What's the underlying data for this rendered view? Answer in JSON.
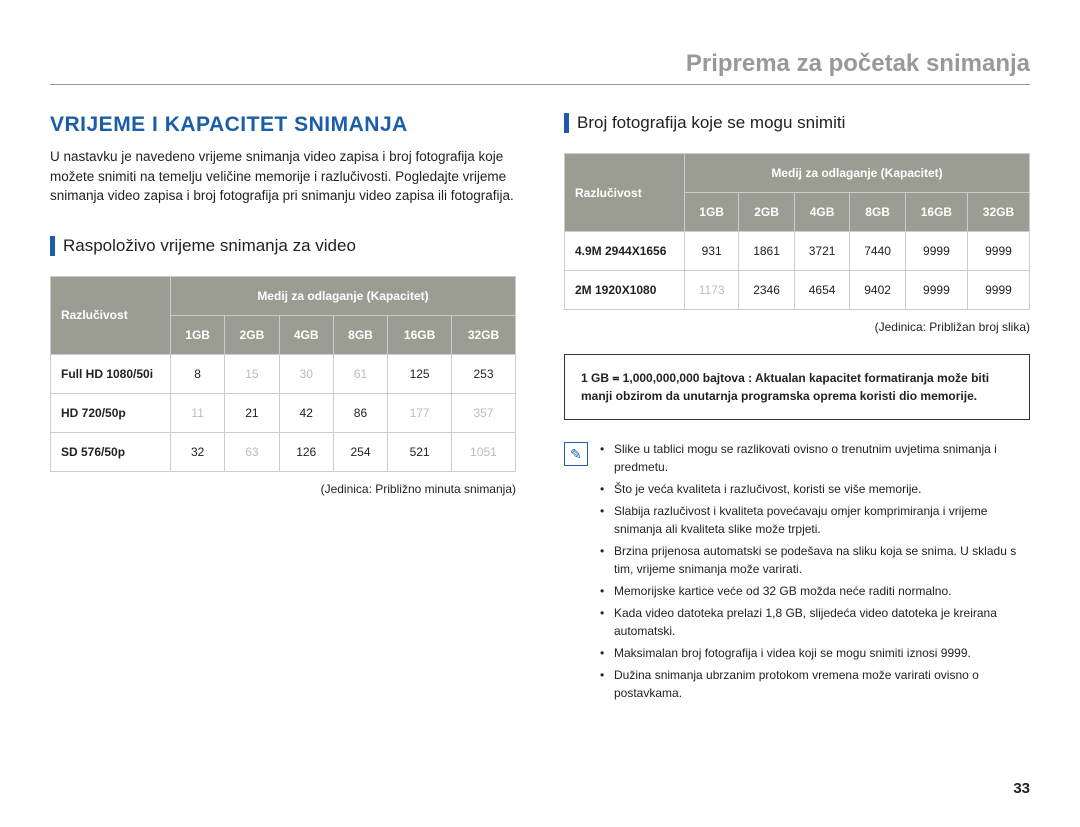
{
  "page_title": "Priprema za početak snimanja",
  "page_number": "33",
  "left": {
    "heading": "VRIJEME I KAPACITET SNIMANJA",
    "intro": "U nastavku je navedeno vrijeme snimanja video zapisa i broj fotografija koje možete snimiti na temelju veličine memorije i razlučivosti. Pogledajte vrijeme snimanja video zapisa i broj fotografija pri snimanju video zapisa ili fotografija.",
    "subhead": "Raspoloživo vrijeme snimanja za video",
    "table": {
      "resolution_label": "Razlučivost",
      "storage_label": "Medij za odlaganje (Kapacitet)",
      "capacities": [
        "1GB",
        "2GB",
        "4GB",
        "8GB",
        "16GB",
        "32GB"
      ],
      "rows": [
        {
          "label": "Full HD  1080/50i",
          "vals": [
            "8",
            "15",
            "30",
            "61",
            "125",
            "253"
          ],
          "dim": [
            false,
            true,
            true,
            true,
            false,
            false
          ]
        },
        {
          "label": "HD  720/50p",
          "vals": [
            "11",
            "21",
            "42",
            "86",
            "177",
            "357"
          ],
          "dim": [
            true,
            false,
            false,
            false,
            true,
            true
          ]
        },
        {
          "label": "SD  576/50p",
          "vals": [
            "32",
            "63",
            "126",
            "254",
            "521",
            "1051"
          ],
          "dim": [
            false,
            true,
            false,
            false,
            false,
            true
          ]
        }
      ],
      "caption": "(Jedinica: Približno minuta snimanja)"
    }
  },
  "right": {
    "subhead": "Broj fotografija koje se mogu snimiti",
    "table": {
      "resolution_label": "Razlučivost",
      "storage_label": "Medij za odlaganje (Kapacitet)",
      "capacities": [
        "1GB",
        "2GB",
        "4GB",
        "8GB",
        "16GB",
        "32GB"
      ],
      "rows": [
        {
          "label": "4.9M  2944X1656",
          "vals": [
            "931",
            "1861",
            "3721",
            "7440",
            "9999",
            "9999"
          ],
          "dim": [
            false,
            false,
            false,
            false,
            false,
            false
          ]
        },
        {
          "label": "2M  1920X1080",
          "vals": [
            "1173",
            "2346",
            "4654",
            "9402",
            "9999",
            "9999"
          ],
          "dim": [
            true,
            false,
            false,
            false,
            false,
            false
          ]
        }
      ],
      "caption": "(Jedinica: Približan broj slika)"
    },
    "note_prefix": "1 GB ᐀ 1,000,000,000 bajtova : ",
    "note_bold": "Aktualan kapacitet formatiranja može biti manji obzirom da unutarnja programska oprema koristi dio memorije.",
    "bullets": [
      "Slike u tablici mogu se razlikovati ovisno o trenutnim uvjetima snimanja i predmetu.",
      "Što je veća kvaliteta i razlučivost, koristi se više memorije.",
      "Slabija razlučivost i kvaliteta povećavaju omjer komprimiranja i vrijeme snimanja ali kvaliteta slike može trpjeti.",
      "Brzina prijenosa automatski se podešava na sliku koja se snima. U skladu s tim, vrijeme snimanja može varirati.",
      "Memorijske kartice veće od 32 GB možda neće raditi normalno.",
      "Kada video datoteka prelazi 1,8 GB, slijedeća video datoteka je kreirana automatski.",
      "Maksimalan broj fotografija i videa koji se mogu snimiti iznosi 9999.",
      "Dužina snimanja ubrzanim protokom vremena može varirati ovisno o postavkama."
    ]
  },
  "colors": {
    "blue": "#1a5ea8",
    "header_bg": "#9b9d92"
  }
}
